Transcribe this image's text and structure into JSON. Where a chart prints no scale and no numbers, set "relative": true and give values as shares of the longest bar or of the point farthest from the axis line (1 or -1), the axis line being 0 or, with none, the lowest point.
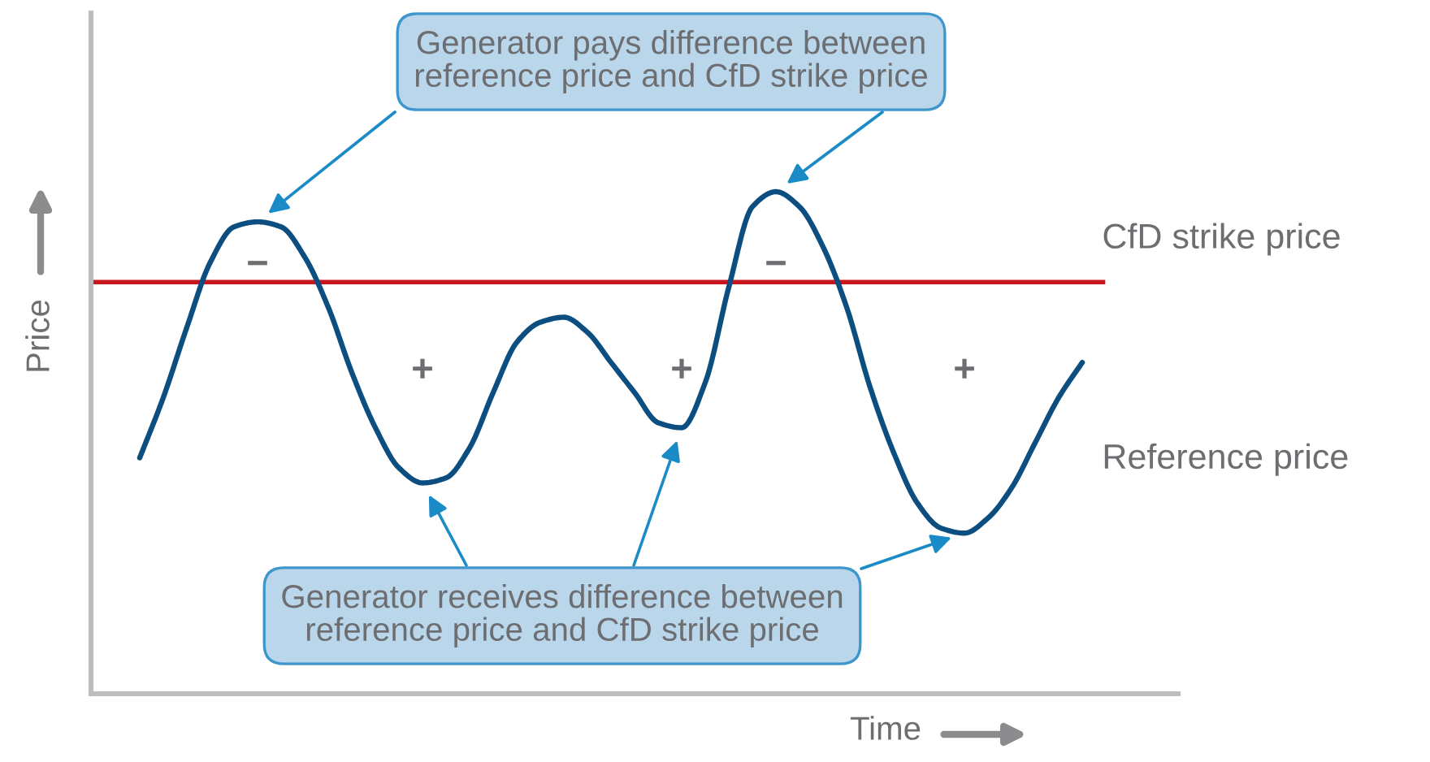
{
  "chart_data": {
    "type": "line",
    "relative": true,
    "xlabel": "Time",
    "ylabel": "Price",
    "categories": [
      null,
      null,
      null,
      null,
      null,
      null,
      null,
      null,
      null,
      null,
      null,
      null,
      null,
      null,
      null,
      null,
      null,
      null,
      null,
      null,
      null,
      null,
      null,
      null,
      null,
      null,
      null,
      null,
      null,
      null,
      null,
      null,
      null,
      null,
      null,
      null,
      null,
      null,
      null,
      null,
      null
    ],
    "series": [
      {
        "name": "Reference price",
        "color": "#0d4e80",
        "values": [
          0.47,
          0.59,
          0.73,
          0.86,
          0.93,
          0.94,
          0.93,
          0.87,
          0.77,
          0.64,
          0.53,
          0.45,
          0.42,
          0.43,
          0.49,
          0.6,
          0.7,
          0.74,
          0.75,
          0.72,
          0.66,
          0.6,
          0.54,
          0.53,
          0.62,
          0.81,
          0.97,
          1.0,
          0.97,
          0.89,
          0.77,
          0.61,
          0.48,
          0.38,
          0.33,
          0.32,
          0.35,
          0.41,
          0.5,
          0.59,
          0.66
        ]
      }
    ],
    "ref_lines": [
      {
        "axis": "y",
        "value": 0.82,
        "label": "CfD strike price",
        "color": "#c8161e"
      }
    ],
    "annotations": [
      "Generator pays difference between\nreference price and CfD strike price",
      "Generator receives difference between\nreference price and CfD strike price",
      "−",
      "−",
      "+",
      "+",
      "+"
    ]
  }
}
